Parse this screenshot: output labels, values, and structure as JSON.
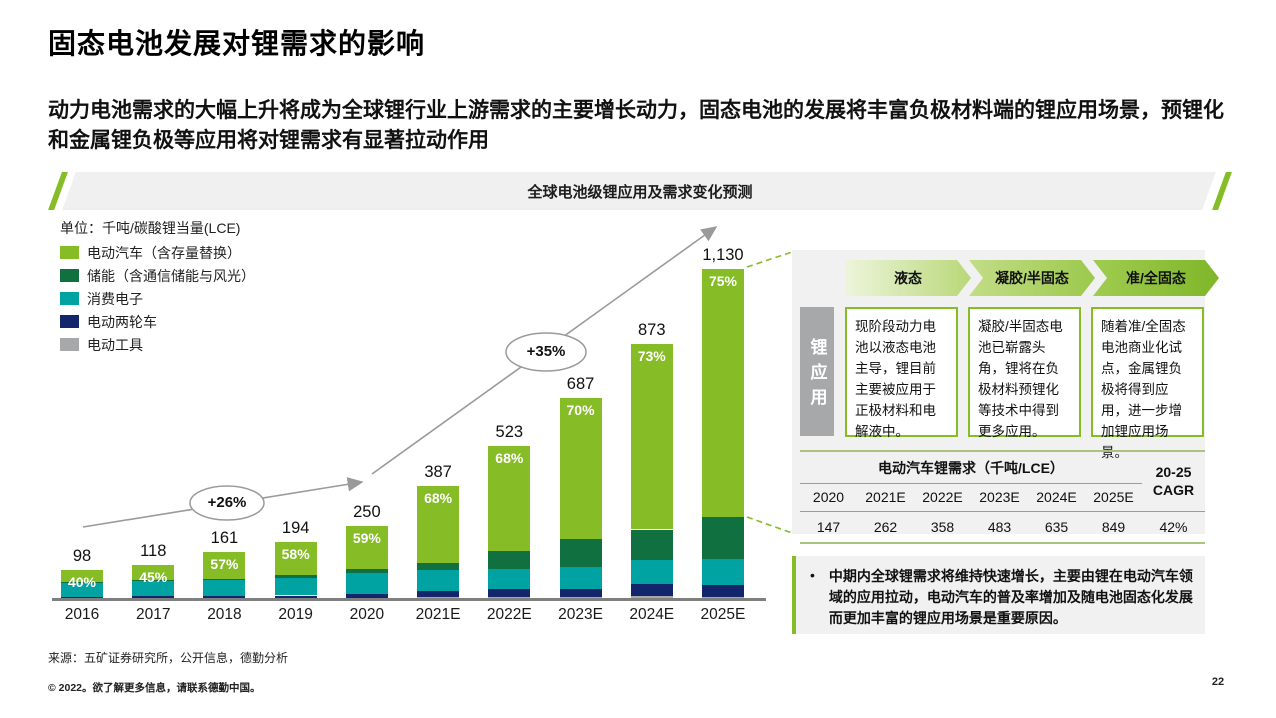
{
  "page": {
    "title": "固态电池发展对锂需求的影响",
    "subtitle": "动力电池需求的大幅上升将成为全球锂行业上游需求的主要增长动力，固态电池的发展将丰富负极材料端的锂应用场景，预锂化和金属锂负极等应用将对锂需求有显著拉动作用",
    "source": "来源：五矿证券研究所，公开信息，德勤分析",
    "copyright": "© 2022。欲了解更多信息，请联系德勤中国。",
    "page_number": "22"
  },
  "chart_data": {
    "type": "bar",
    "stacked": true,
    "title": "全球电池级锂应用及需求变化预测",
    "unit_label": "单位：千吨/碳酸锂当量(LCE)",
    "legend_position": "top-left",
    "ylim": [
      0,
      1130
    ],
    "categories": [
      "2016",
      "2017",
      "2018",
      "2019",
      "2020",
      "2021E",
      "2022E",
      "2023E",
      "2024E",
      "2025E"
    ],
    "totals": [
      98,
      118,
      161,
      194,
      250,
      387,
      523,
      687,
      873,
      1130
    ],
    "total_labels": [
      "98",
      "118",
      "161",
      "194",
      "250",
      "387",
      "523",
      "687",
      "873",
      "1,130"
    ],
    "ev_share_labels": [
      "40%",
      "45%",
      "57%",
      "58%",
      "59%",
      "68%",
      "68%",
      "70%",
      "73%",
      "75%"
    ],
    "series": [
      {
        "name": "电动汽车（含存量替换）",
        "color": "#86BC25",
        "values": [
          39,
          53,
          92,
          113,
          147,
          262,
          358,
          483,
          635,
          849
        ]
      },
      {
        "name": "储能（含通信储能与风光）",
        "color": "#10703F",
        "values": [
          2,
          3,
          4,
          8,
          14,
          27,
          62,
          93,
          103,
          144
        ]
      },
      {
        "name": "消费电子",
        "color": "#00A3A1",
        "values": [
          49,
          53,
          55,
          61,
          71,
          70,
          70,
          76,
          85,
          89
        ]
      },
      {
        "name": "电动两轮车",
        "color": "#13266B",
        "values": [
          5,
          6,
          7,
          8,
          14,
          22,
          26,
          27,
          40,
          41
        ]
      },
      {
        "name": "电动工具",
        "color": "#A7A8AA",
        "values": [
          3,
          3,
          3,
          4,
          4,
          6,
          7,
          8,
          10,
          7
        ]
      }
    ],
    "growth_annotations": [
      {
        "label": "+26%",
        "from": "2016",
        "to": "2020"
      },
      {
        "label": "+35%",
        "from": "2020",
        "to": "2025E"
      }
    ]
  },
  "stages_panel": {
    "row_label": "锂应用",
    "stages": [
      {
        "name": "液态",
        "description": "现阶段动力电池以液态电池主导，锂目前主要被应用于正极材料和电解液中。"
      },
      {
        "name": "凝胶/半固态",
        "description": "凝胶/半固态电池已崭露头角，锂将在负极材料预锂化等技术中得到更多应用。"
      },
      {
        "name": "准/全固态",
        "description": "随着准/全固态电池商业化试点，金属锂负极将得到应用，进一步增加锂应用场景。"
      }
    ]
  },
  "ev_table": {
    "title": "电动汽车锂需求（千吨/LCE）",
    "cagr_header": "20-25 CAGR",
    "years": [
      "2020",
      "2021E",
      "2022E",
      "2023E",
      "2024E",
      "2025E"
    ],
    "values": [
      "147",
      "262",
      "358",
      "483",
      "635",
      "849"
    ],
    "cagr_value": "42%"
  },
  "insight": {
    "bullet_char": "•",
    "text": "中期内全球锂需求将维持快速增长，主要由锂在电动汽车领域的应用拉动，电动汽车的普及率增加及随电池固态化发展而更加丰富的锂应用场景是重要原因。"
  },
  "colors": {
    "brand_green": "#86BC25",
    "dark_green": "#10703F",
    "teal": "#00A3A1",
    "navy": "#13266B",
    "gray": "#A7A8AA",
    "panel_bg": "#F1F1F2",
    "table_border_green": "#A9C47F",
    "arrow_gray": "#9A9A9A"
  }
}
